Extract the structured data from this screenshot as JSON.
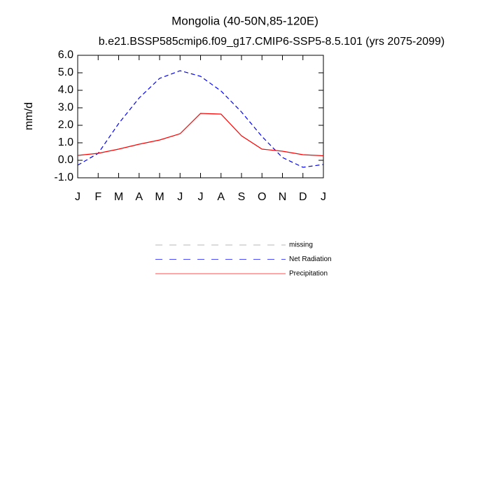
{
  "chart_data": {
    "type": "line",
    "title": "Mongolia (40-50N,85-120E)",
    "subtitle": "b.e21.BSSP585cmip6.f09_g17.CMIP6-SSP5-8.5.101 (yrs 2075-2099)",
    "y_label": "mm/d",
    "categories": [
      "J",
      "F",
      "M",
      "A",
      "M",
      "J",
      "J",
      "A",
      "S",
      "O",
      "N",
      "D",
      "J"
    ],
    "ylim": [
      -1,
      6
    ],
    "yticks": [
      {
        "value": -1,
        "label": "-1.0"
      },
      {
        "value": 0,
        "label": "0.0"
      },
      {
        "value": 1,
        "label": "1.0"
      },
      {
        "value": 2,
        "label": "2.0"
      },
      {
        "value": 3,
        "label": "3.0"
      },
      {
        "value": 4,
        "label": "4.0"
      },
      {
        "value": 5,
        "label": "5.0"
      },
      {
        "value": 6,
        "label": "6.0"
      }
    ],
    "series": [
      {
        "name": "missing",
        "color": "#999999",
        "dash": true,
        "values": [
          null,
          null,
          null,
          null,
          null,
          null,
          null,
          null,
          null,
          null,
          null,
          null,
          null
        ]
      },
      {
        "name": "Net Radiation",
        "color": "#0000ff",
        "dash": true,
        "values": [
          -0.28,
          0.4,
          2.1,
          3.56,
          4.68,
          5.12,
          4.8,
          3.96,
          2.76,
          1.36,
          0.16,
          -0.4,
          -0.24
        ]
      },
      {
        "name": "Precipitation",
        "color": "#ff0000",
        "dash": false,
        "values": [
          0.28,
          0.4,
          0.64,
          0.92,
          1.16,
          1.52,
          2.68,
          2.64,
          1.4,
          0.64,
          0.52,
          0.32,
          0.26
        ]
      }
    ]
  }
}
